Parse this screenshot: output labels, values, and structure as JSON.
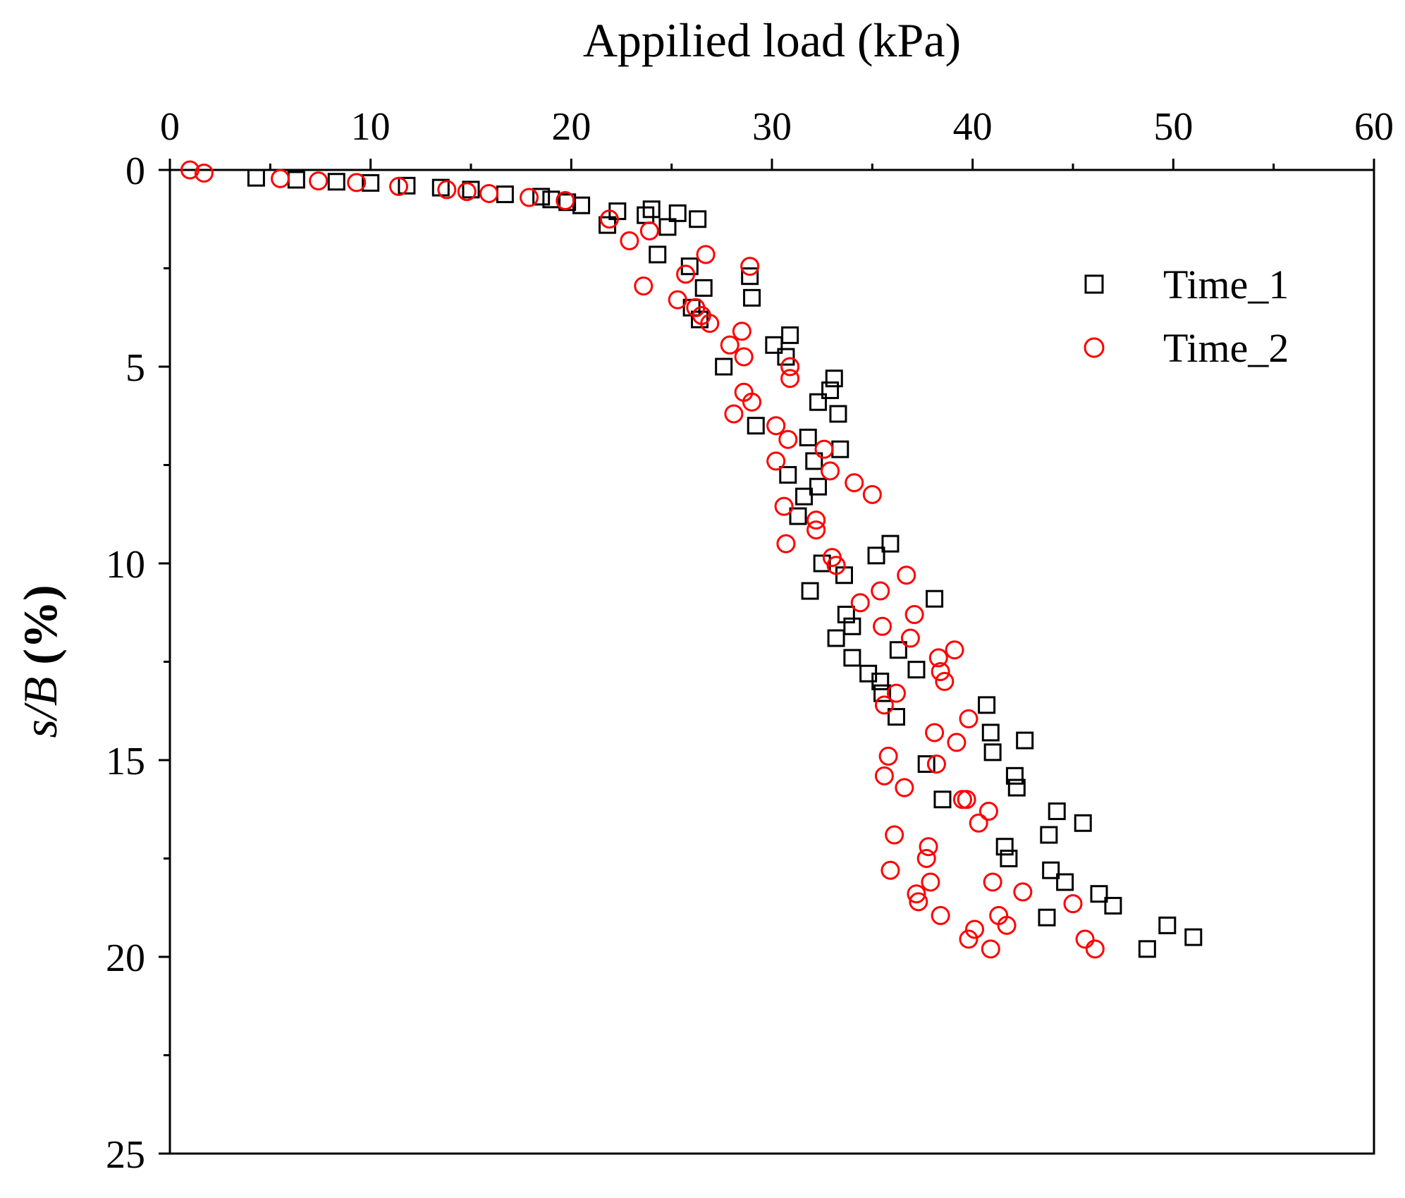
{
  "chart_data": {
    "type": "scatter",
    "xlabel": "Appilied load (kPa)",
    "ylabel_italic": "s/B",
    "ylabel_rest": " (%)",
    "xlim": [
      0,
      60
    ],
    "ylim": [
      0,
      25
    ],
    "y_inverted": true,
    "x_axis_position": "top",
    "xticks": [
      0,
      10,
      20,
      30,
      40,
      50,
      60
    ],
    "yticks": [
      0,
      5,
      10,
      15,
      20,
      25
    ],
    "legend_position": "top-right",
    "series": [
      {
        "name": "Time_1",
        "marker": "square",
        "color": "#000000",
        "points": [
          [
            4.3,
            0.2
          ],
          [
            6.3,
            0.25
          ],
          [
            8.3,
            0.3
          ],
          [
            10.0,
            0.33
          ],
          [
            11.8,
            0.4
          ],
          [
            13.5,
            0.45
          ],
          [
            15.0,
            0.5
          ],
          [
            16.7,
            0.62
          ],
          [
            18.5,
            0.68
          ],
          [
            19.0,
            0.75
          ],
          [
            19.8,
            0.82
          ],
          [
            20.5,
            0.9
          ],
          [
            21.8,
            1.4
          ],
          [
            22.3,
            1.05
          ],
          [
            23.7,
            1.15
          ],
          [
            24.0,
            1.0
          ],
          [
            24.3,
            2.15
          ],
          [
            24.8,
            1.45
          ],
          [
            25.3,
            1.1
          ],
          [
            25.9,
            2.45
          ],
          [
            26.0,
            3.5
          ],
          [
            26.3,
            1.25
          ],
          [
            26.4,
            3.8
          ],
          [
            26.6,
            3.0
          ],
          [
            27.6,
            5.0
          ],
          [
            28.9,
            2.7
          ],
          [
            29.0,
            3.25
          ],
          [
            29.2,
            6.5
          ],
          [
            30.1,
            4.45
          ],
          [
            30.7,
            4.75
          ],
          [
            30.9,
            4.2
          ],
          [
            30.8,
            7.75
          ],
          [
            31.3,
            8.8
          ],
          [
            31.6,
            8.3
          ],
          [
            31.8,
            6.8
          ],
          [
            31.9,
            10.7
          ],
          [
            32.1,
            7.4
          ],
          [
            32.3,
            5.9
          ],
          [
            32.3,
            8.05
          ],
          [
            32.5,
            10.0
          ],
          [
            32.9,
            5.6
          ],
          [
            33.1,
            5.3
          ],
          [
            33.2,
            11.9
          ],
          [
            33.3,
            6.2
          ],
          [
            33.4,
            7.1
          ],
          [
            33.6,
            10.3
          ],
          [
            33.7,
            11.3
          ],
          [
            34.0,
            11.6
          ],
          [
            34.0,
            12.4
          ],
          [
            34.8,
            12.8
          ],
          [
            35.2,
            9.8
          ],
          [
            35.4,
            13.0
          ],
          [
            35.5,
            13.3
          ],
          [
            35.9,
            9.5
          ],
          [
            36.2,
            13.9
          ],
          [
            36.3,
            12.2
          ],
          [
            37.2,
            12.7
          ],
          [
            37.7,
            15.1
          ],
          [
            38.1,
            10.9
          ],
          [
            38.5,
            16.0
          ],
          [
            40.7,
            13.6
          ],
          [
            40.9,
            14.3
          ],
          [
            41.0,
            14.8
          ],
          [
            41.6,
            17.2
          ],
          [
            41.8,
            17.5
          ],
          [
            42.1,
            15.4
          ],
          [
            42.2,
            15.7
          ],
          [
            42.6,
            14.5
          ],
          [
            43.7,
            19.0
          ],
          [
            43.8,
            16.9
          ],
          [
            43.9,
            17.8
          ],
          [
            44.2,
            16.3
          ],
          [
            44.6,
            18.1
          ],
          [
            45.5,
            16.6
          ],
          [
            46.3,
            18.4
          ],
          [
            47.0,
            18.7
          ],
          [
            48.7,
            19.8
          ],
          [
            49.7,
            19.2
          ],
          [
            51.0,
            19.5
          ]
        ]
      },
      {
        "name": "Time_2",
        "marker": "circle",
        "color": "#ff0000",
        "points": [
          [
            1.0,
            0.0
          ],
          [
            1.7,
            0.08
          ],
          [
            5.5,
            0.22
          ],
          [
            7.4,
            0.28
          ],
          [
            9.3,
            0.32
          ],
          [
            11.4,
            0.42
          ],
          [
            13.8,
            0.5
          ],
          [
            14.8,
            0.55
          ],
          [
            15.9,
            0.6
          ],
          [
            17.9,
            0.7
          ],
          [
            19.7,
            0.78
          ],
          [
            21.9,
            1.25
          ],
          [
            22.9,
            1.8
          ],
          [
            23.6,
            2.95
          ],
          [
            23.9,
            1.55
          ],
          [
            25.3,
            3.3
          ],
          [
            25.7,
            2.65
          ],
          [
            26.2,
            3.5
          ],
          [
            26.5,
            3.7
          ],
          [
            26.7,
            2.15
          ],
          [
            26.9,
            3.9
          ],
          [
            27.9,
            4.45
          ],
          [
            28.1,
            6.2
          ],
          [
            28.5,
            4.1
          ],
          [
            28.6,
            4.75
          ],
          [
            28.6,
            5.65
          ],
          [
            28.9,
            2.45
          ],
          [
            29.0,
            5.9
          ],
          [
            30.2,
            6.5
          ],
          [
            30.2,
            7.4
          ],
          [
            30.6,
            8.55
          ],
          [
            30.7,
            9.5
          ],
          [
            30.8,
            6.85
          ],
          [
            30.9,
            5.0
          ],
          [
            30.9,
            5.3
          ],
          [
            32.2,
            8.9
          ],
          [
            32.2,
            9.15
          ],
          [
            32.6,
            7.1
          ],
          [
            32.9,
            7.65
          ],
          [
            33.0,
            9.85
          ],
          [
            33.2,
            10.05
          ],
          [
            34.1,
            7.95
          ],
          [
            34.4,
            11.0
          ],
          [
            35.0,
            8.25
          ],
          [
            35.4,
            10.7
          ],
          [
            35.5,
            11.6
          ],
          [
            35.6,
            13.6
          ],
          [
            35.6,
            15.4
          ],
          [
            35.8,
            14.9
          ],
          [
            35.9,
            17.8
          ],
          [
            36.1,
            16.9
          ],
          [
            36.2,
            13.3
          ],
          [
            36.6,
            15.7
          ],
          [
            36.7,
            10.3
          ],
          [
            36.9,
            11.9
          ],
          [
            37.1,
            11.3
          ],
          [
            37.2,
            18.4
          ],
          [
            37.3,
            18.6
          ],
          [
            37.7,
            17.5
          ],
          [
            37.8,
            17.2
          ],
          [
            37.9,
            18.1
          ],
          [
            38.1,
            14.3
          ],
          [
            38.2,
            15.1
          ],
          [
            38.3,
            12.4
          ],
          [
            38.4,
            12.75
          ],
          [
            38.4,
            18.95
          ],
          [
            38.6,
            13.0
          ],
          [
            39.1,
            12.2
          ],
          [
            39.2,
            14.55
          ],
          [
            39.5,
            16.0
          ],
          [
            39.7,
            16.0
          ],
          [
            39.8,
            13.95
          ],
          [
            39.8,
            19.55
          ],
          [
            40.1,
            19.3
          ],
          [
            40.3,
            16.6
          ],
          [
            40.8,
            16.3
          ],
          [
            40.9,
            19.8
          ],
          [
            41.0,
            18.1
          ],
          [
            41.3,
            18.95
          ],
          [
            41.7,
            19.2
          ],
          [
            42.5,
            18.35
          ],
          [
            45.0,
            18.65
          ],
          [
            45.6,
            19.55
          ],
          [
            46.1,
            19.8
          ]
        ]
      }
    ]
  }
}
